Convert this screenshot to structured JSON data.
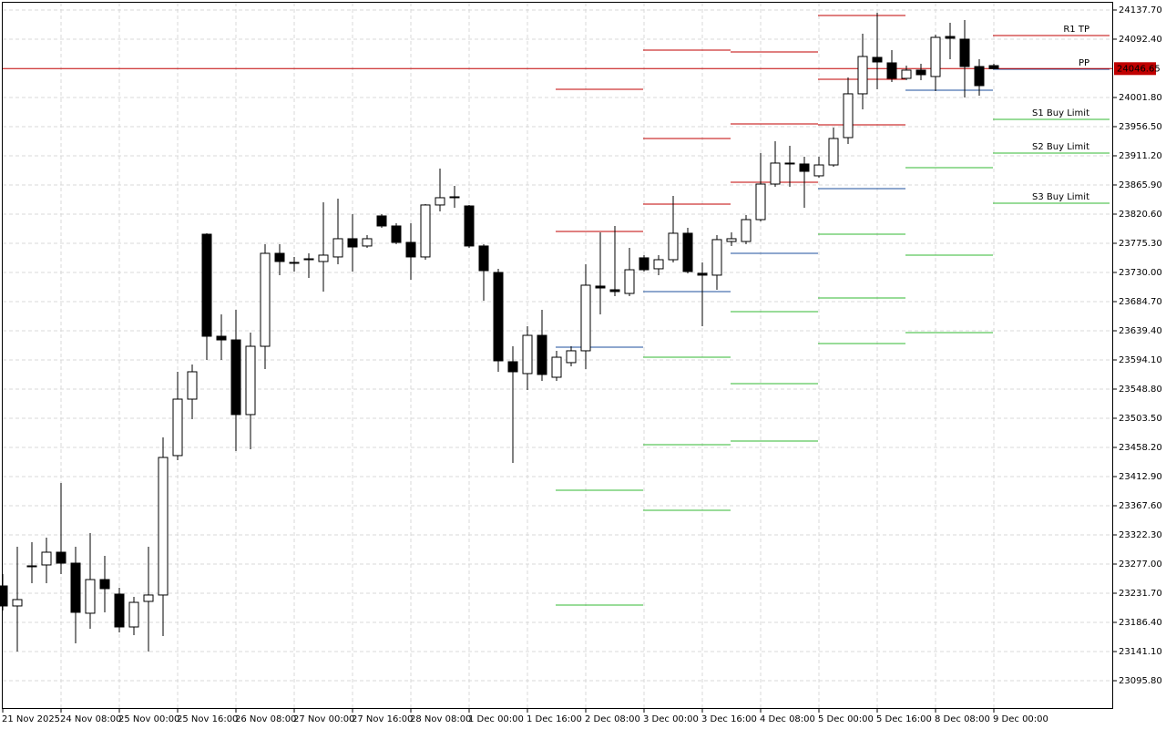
{
  "chart_data": {
    "type": "candlestick",
    "categories": [
      "21 Nov 2025",
      null,
      null,
      null,
      "24 Nov 08:00",
      null,
      null,
      null,
      "25 Nov 00:00",
      null,
      null,
      null,
      "25 Nov 16:00",
      null,
      null,
      null,
      "26 Nov 08:00",
      null,
      null,
      null,
      "27 Nov 00:00",
      null,
      null,
      null,
      "27 Nov 16:00",
      null,
      null,
      null,
      "28 Nov 08:00",
      null,
      null,
      null,
      "1 Dec 00:00",
      null,
      null,
      null,
      "1 Dec 16:00",
      null,
      null,
      null,
      "2 Dec 08:00",
      null,
      null,
      null,
      "3 Dec 00:00",
      null,
      null,
      null,
      "3 Dec 16:00",
      null,
      null,
      null,
      "4 Dec 08:00",
      null,
      null,
      null,
      "5 Dec 00:00",
      null,
      null,
      null,
      "5 Dec 16:00",
      null,
      null,
      null,
      "8 Dec 08:00",
      null,
      null,
      null,
      "9 Dec 00:00"
    ],
    "open": [
      23243.0,
      23211.9,
      23272.8,
      23275.6,
      23295.4,
      23278.4,
      23200.6,
      23252.9,
      23230.3,
      23179.3,
      23219.0,
      23228.9,
      23445.5,
      23533.2,
      23789.4,
      23630.9,
      23625.2,
      23509.2,
      23615.3,
      23759.7,
      23745.6,
      23749.8,
      23747.0,
      23754.1,
      23782.4,
      23771.1,
      23817.8,
      23802.2,
      23776.7,
      23754.1,
      23834.8,
      23847.5,
      23833.3,
      23771.1,
      23730.0,
      23591.3,
      23572.9,
      23632.3,
      23567.2,
      23589.9,
      23608.3,
      23708.8,
      23703.1,
      23697.4,
      23752.7,
      23735.7,
      23749.8,
      23790.9,
      23728.6,
      23725.8,
      23778.1,
      23778.1,
      23812.1,
      23867.3,
      23899.9,
      23898.5,
      23880.1,
      23897.0,
      23939.5,
      24007.5,
      24064.1,
      24055.6,
      24031.5,
      24044.3,
      24034.4,
      24096.6,
      24092.4,
      24049.9,
      24051.3
    ],
    "high": [
      23261.4,
      23303.9,
      23311.0,
      23318.1,
      23403.0,
      23303.9,
      23325.1,
      23289.7,
      23240.2,
      23226.0,
      23303.9,
      23473.8,
      23575.7,
      23587.0,
      23790.9,
      23664.9,
      23672.0,
      23636.6,
      23773.9,
      23773.9,
      23754.1,
      23759.7,
      23839.0,
      23844.7,
      23820.6,
      23788.0,
      23820.6,
      23806.4,
      23806.4,
      23836.2,
      23891.4,
      23864.5,
      23834.8,
      23773.9,
      23735.7,
      23615.3,
      23646.5,
      23672.0,
      23608.3,
      23615.3,
      23742.7,
      23792.3,
      23802.2,
      23768.2,
      23756.9,
      23756.9,
      23848.9,
      23799.4,
      23745.6,
      23788.0,
      23792.3,
      23819.2,
      23915.4,
      23933.9,
      23926.8,
      23909.8,
      23909.8,
      23955.1,
      24032.9,
      24100.9,
      24133.5,
      24075.4,
      24051.3,
      24054.2,
      24099.5,
      24117.9,
      24122.1,
      24061.3,
      24054.2
    ],
    "low": [
      23204.8,
      23141.1,
      23247.3,
      23247.3,
      23261.4,
      23153.8,
      23176.5,
      23202.0,
      23170.8,
      23166.6,
      23141.1,
      23165.2,
      23438.4,
      23502.1,
      23594.1,
      23594.1,
      23452.5,
      23455.4,
      23579.9,
      23725.8,
      23731.4,
      23721.5,
      23700.3,
      23742.7,
      23731.4,
      23768.2,
      23799.4,
      23773.9,
      23718.7,
      23749.8,
      23824.8,
      23830.5,
      23768.2,
      23686.1,
      23575.7,
      23434.1,
      23547.4,
      23561.5,
      23561.5,
      23584.2,
      23579.9,
      23664.9,
      23693.2,
      23693.2,
      23731.4,
      23725.8,
      23745.6,
      23728.6,
      23646.5,
      23703.1,
      23771.1,
      23773.9,
      23809.3,
      23863.1,
      23863.1,
      23830.5,
      23877.2,
      23894.2,
      23929.6,
      23983.4,
      24014.5,
      24025.9,
      24028.7,
      24028.7,
      24011.7,
      24061.3,
      24001.8,
      24004.6,
      24045.7
    ],
    "close": [
      23211.9,
      23221.8,
      23274.2,
      23295.4,
      23278.4,
      23202.0,
      23252.9,
      23238.8,
      23179.3,
      23217.5,
      23228.9,
      23442.6,
      23533.2,
      23575.7,
      23630.9,
      23625.2,
      23509.2,
      23615.3,
      23759.7,
      23747.0,
      23745.6,
      23751.2,
      23756.9,
      23782.4,
      23769.6,
      23782.4,
      23802.2,
      23776.7,
      23754.1,
      23834.8,
      23846.1,
      23846.1,
      23771.1,
      23732.8,
      23592.7,
      23575.7,
      23632.3,
      23571.5,
      23598.3,
      23608.3,
      23710.2,
      23705.9,
      23700.3,
      23734.2,
      23734.2,
      23749.8,
      23790.9,
      23731.4,
      23725.8,
      23781.0,
      23782.4,
      23812.1,
      23867.3,
      23899.9,
      23898.5,
      23887.1,
      23897.0,
      23938.1,
      24007.5,
      24065.5,
      24057.0,
      24031.5,
      24044.3,
      24037.2,
      24095.2,
      24093.8,
      24049.9,
      24020.2,
      24046.65
    ],
    "up_color": "#ffffff",
    "down_color": "#000000",
    "ylim": [
      23051.9,
      24149.0
    ],
    "yticks": [
      {
        "value": 24137.7,
        "label": "24137.70"
      },
      {
        "value": 24092.4,
        "label": "24092.40"
      },
      {
        "value": 24001.8,
        "label": "24001.80"
      },
      {
        "value": 23956.5,
        "label": "23956.50"
      },
      {
        "value": 23911.2,
        "label": "23911.20"
      },
      {
        "value": 23865.9,
        "label": "23865.90"
      },
      {
        "value": 23820.6,
        "label": "23820.60"
      },
      {
        "value": 23775.3,
        "label": "23775.30"
      },
      {
        "value": 23730.0,
        "label": "23730.00"
      },
      {
        "value": 23684.7,
        "label": "23684.70"
      },
      {
        "value": 23639.4,
        "label": "23639.40"
      },
      {
        "value": 23594.1,
        "label": "23594.10"
      },
      {
        "value": 23548.8,
        "label": "23548.80"
      },
      {
        "value": 23503.5,
        "label": "23503.50"
      },
      {
        "value": 23458.2,
        "label": "23458.20"
      },
      {
        "value": 23412.9,
        "label": "23412.90"
      },
      {
        "value": 23367.6,
        "label": "23367.60"
      },
      {
        "value": 23322.3,
        "label": "23322.30"
      },
      {
        "value": 23277.0,
        "label": "23277.00"
      },
      {
        "value": 23231.7,
        "label": "23231.70"
      },
      {
        "value": 23186.4,
        "label": "23186.40"
      },
      {
        "value": 23141.1,
        "label": "23141.10"
      },
      {
        "value": 23095.8,
        "label": "23095.80"
      }
    ],
    "grid": true,
    "current_price": 24046.65,
    "current_price_color": "#c00000",
    "resistance_color": "#c00000",
    "pivot_color": "#1c4f9c",
    "support_color": "#33b833",
    "pivot_periods": [
      {
        "resistance": [
          24014.5,
          23793.7
        ],
        "pivot": 23613.9,
        "support": [
          23391.7,
          23213.3
        ]
      },
      {
        "resistance": [
          24075.4,
          23938.1,
          23836.2
        ],
        "pivot": 23700.3,
        "support": [
          23598.3,
          23462.4,
          23360.5
        ]
      },
      {
        "resistance": [
          24072.6,
          23960.7,
          23870.1
        ],
        "pivot": 23759.7,
        "support": [
          23669.1,
          23557.3,
          23468.1
        ]
      },
      {
        "resistance": [
          24129.2,
          24030.1,
          23959.3
        ],
        "pivot": 23860.2,
        "support": [
          23789.4,
          23690.4,
          23619.6
        ]
      },
      {
        "pivot": 24013.1,
        "support": [
          23892.8,
          23756.9,
          23636.6
        ]
      },
      {
        "resistance": [
          24098.1
        ],
        "pivot": 24045.7,
        "support": [
          23967.8,
          23915.4,
          23837.6
        ],
        "resistance_labels": [
          "R1 TP"
        ],
        "pivot_label": "PP",
        "support_labels": [
          "S1 Buy Limit",
          "S2 Buy Limit",
          "S3 Buy Limit"
        ]
      }
    ]
  }
}
